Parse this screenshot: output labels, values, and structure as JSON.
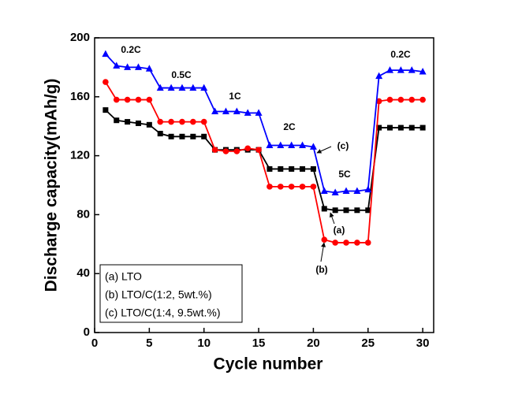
{
  "chart_data": {
    "type": "line",
    "x_label": "Cycle number",
    "y_label": "Discharge capacity(mAh/g)",
    "x": [
      1,
      2,
      3,
      4,
      5,
      6,
      7,
      8,
      9,
      10,
      11,
      12,
      13,
      14,
      15,
      16,
      17,
      18,
      19,
      20,
      21,
      22,
      23,
      24,
      25,
      26,
      27,
      28,
      29,
      30
    ],
    "series": [
      {
        "name": "(a) LTO",
        "color": "#000000",
        "marker": "square",
        "values": [
          151,
          144,
          143,
          142,
          141,
          135,
          133,
          133,
          133,
          133,
          124,
          124,
          124,
          124,
          124,
          111,
          111,
          111,
          111,
          111,
          84,
          83,
          83,
          83,
          83,
          139,
          139,
          139,
          139,
          139
        ]
      },
      {
        "name": "(b) LTO/C(1:2, 5wt.%)",
        "color": "#ff0000",
        "marker": "circle",
        "values": [
          170,
          158,
          158,
          158,
          158,
          143,
          143,
          143,
          143,
          143,
          124,
          123,
          123,
          125,
          124,
          99,
          99,
          99,
          99,
          99,
          63,
          61,
          61,
          61,
          61,
          157,
          158,
          158,
          158,
          158
        ]
      },
      {
        "name": "(c) LTO/C(1:4, 9.5wt.%)",
        "color": "#0000ff",
        "marker": "triangle",
        "values": [
          189,
          181,
          180,
          180,
          179,
          166,
          166,
          166,
          166,
          166,
          150,
          150,
          150,
          149,
          149,
          127,
          127,
          127,
          127,
          126,
          96,
          95,
          96,
          96,
          97,
          174,
          178,
          178,
          178,
          177
        ]
      }
    ],
    "annotations": [
      "0.2C",
      "0.5C",
      "1C",
      "2C",
      "5C",
      "0.2C",
      "(a)",
      "(b)",
      "(c)"
    ],
    "xlim": [
      0,
      31
    ],
    "xticks": [
      0,
      5,
      10,
      15,
      20,
      25,
      30
    ],
    "ylim": [
      0,
      200
    ],
    "yticks": [
      0,
      40,
      80,
      120,
      160,
      200
    ],
    "legend": "lower left"
  }
}
